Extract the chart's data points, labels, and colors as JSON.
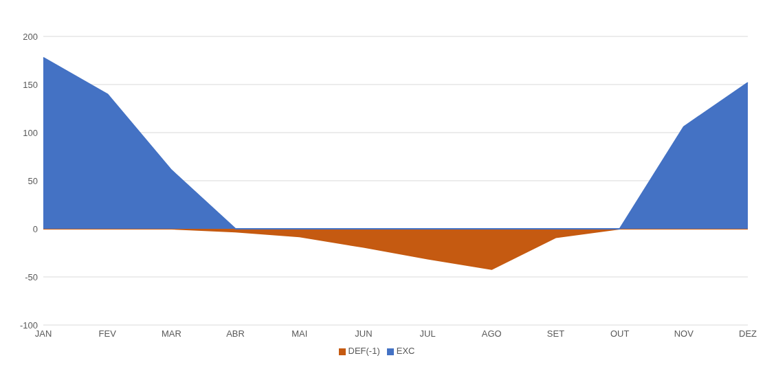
{
  "chart_data": {
    "type": "area",
    "categories": [
      "JAN",
      "FEV",
      "MAR",
      "ABR",
      "MAI",
      "JUN",
      "JUL",
      "AGO",
      "SET",
      "OUT",
      "NOV",
      "DEZ"
    ],
    "series": [
      {
        "name": "DEF(-1)",
        "color": "#c55a11",
        "values": [
          0,
          0,
          0,
          -3,
          -8,
          -19,
          -31,
          -42,
          -9,
          0,
          0,
          0
        ]
      },
      {
        "name": "EXC",
        "color": "#4472c4",
        "values": [
          178,
          140,
          61,
          0,
          0,
          0,
          0,
          0,
          0,
          0,
          106,
          152
        ]
      }
    ],
    "ylim": [
      -100,
      200
    ],
    "yticks": [
      -100,
      -50,
      0,
      50,
      100,
      150,
      200
    ],
    "grid": "y",
    "legend": "bottom"
  }
}
